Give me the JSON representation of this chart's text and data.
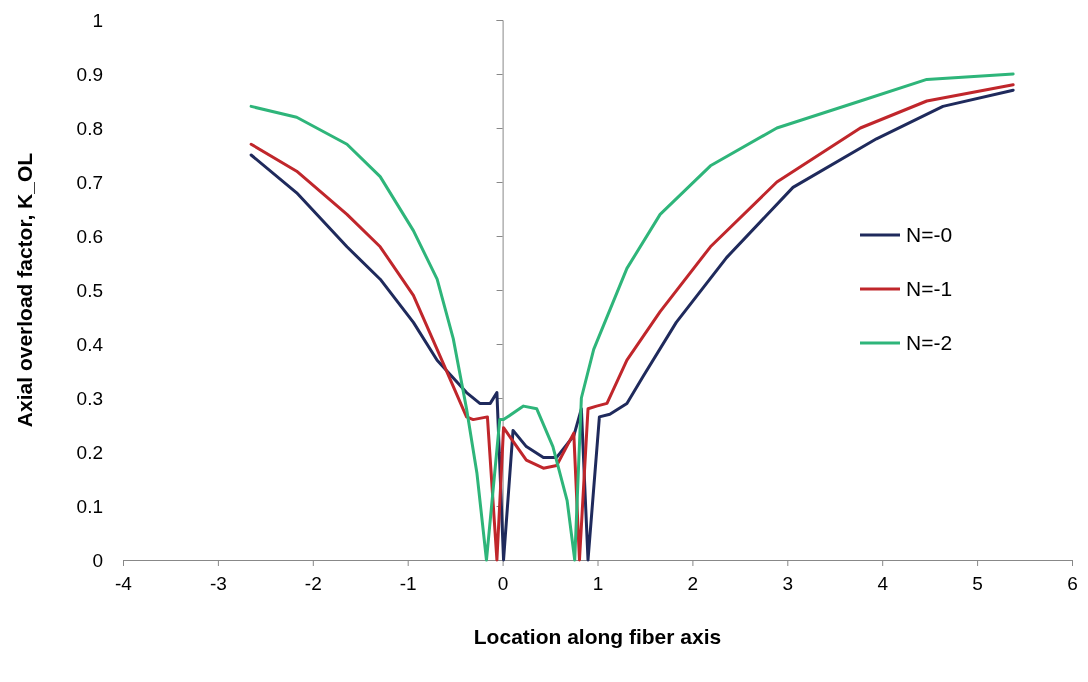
{
  "chart_data": {
    "type": "line",
    "xlabel": "Location along fiber axis",
    "ylabel": "Axial overload factor, K_OL",
    "xlim": [
      -4,
      6
    ],
    "xticks": [
      -4,
      -3,
      -2,
      -1,
      0,
      1,
      2,
      3,
      4,
      5,
      6
    ],
    "ylim": [
      0,
      1
    ],
    "yticks": [
      0,
      0.1,
      0.2,
      0.3,
      0.4,
      0.5,
      0.6,
      0.7,
      0.8,
      0.9,
      1
    ],
    "grid": false,
    "legend": "right",
    "marker": "none",
    "line_style": "solid",
    "series": [
      {
        "name": "N=-0",
        "color": "#1f2a5c",
        "x": [
          -2.65,
          -2.17,
          -1.64,
          -1.29,
          -0.94,
          -0.69,
          -0.38,
          -0.24,
          -0.13,
          -0.06,
          0.01,
          0.11,
          0.25,
          0.43,
          0.57,
          0.75,
          0.83,
          0.9,
          1.02,
          1.13,
          1.31,
          1.48,
          1.83,
          2.36,
          3.06,
          3.94,
          4.64,
          5.38
        ],
        "values": [
          0.75,
          0.68,
          0.58,
          0.52,
          0.44,
          0.37,
          0.31,
          0.29,
          0.29,
          0.31,
          0,
          0.24,
          0.21,
          0.19,
          0.19,
          0.23,
          0.28,
          0,
          0.265,
          0.27,
          0.29,
          0.34,
          0.44,
          0.56,
          0.69,
          0.78,
          0.84,
          0.87
        ]
      },
      {
        "name": "N=-1",
        "color": "#c0262b",
        "x": [
          -2.65,
          -2.17,
          -1.64,
          -1.29,
          -0.94,
          -0.69,
          -0.38,
          -0.31,
          -0.16,
          -0.06,
          0.01,
          0.25,
          0.43,
          0.57,
          0.75,
          0.81,
          0.9,
          0.99,
          1.1,
          1.31,
          1.66,
          2.19,
          2.89,
          3.77,
          4.47,
          5.38
        ],
        "values": [
          0.77,
          0.72,
          0.64,
          0.58,
          0.49,
          0.39,
          0.265,
          0.26,
          0.265,
          0,
          0.245,
          0.185,
          0.17,
          0.175,
          0.235,
          0,
          0.28,
          0.285,
          0.29,
          0.37,
          0.46,
          0.58,
          0.7,
          0.8,
          0.85,
          0.88
        ]
      },
      {
        "name": "N=-2",
        "color": "#2eb57a",
        "x": [
          -2.65,
          -2.17,
          -1.64,
          -1.29,
          -0.94,
          -0.69,
          -0.52,
          -0.38,
          -0.27,
          -0.17,
          -0.03,
          0.01,
          0.22,
          0.36,
          0.53,
          0.68,
          0.76,
          0.83,
          0.96,
          1.31,
          1.66,
          2.19,
          2.89,
          3.77,
          4.47,
          5.38
        ],
        "values": [
          0.84,
          0.82,
          0.77,
          0.71,
          0.61,
          0.52,
          0.41,
          0.28,
          0.16,
          0,
          0.26,
          0.26,
          0.285,
          0.28,
          0.21,
          0.11,
          0,
          0.3,
          0.39,
          0.54,
          0.64,
          0.73,
          0.8,
          0.85,
          0.89,
          0.9
        ]
      }
    ]
  }
}
